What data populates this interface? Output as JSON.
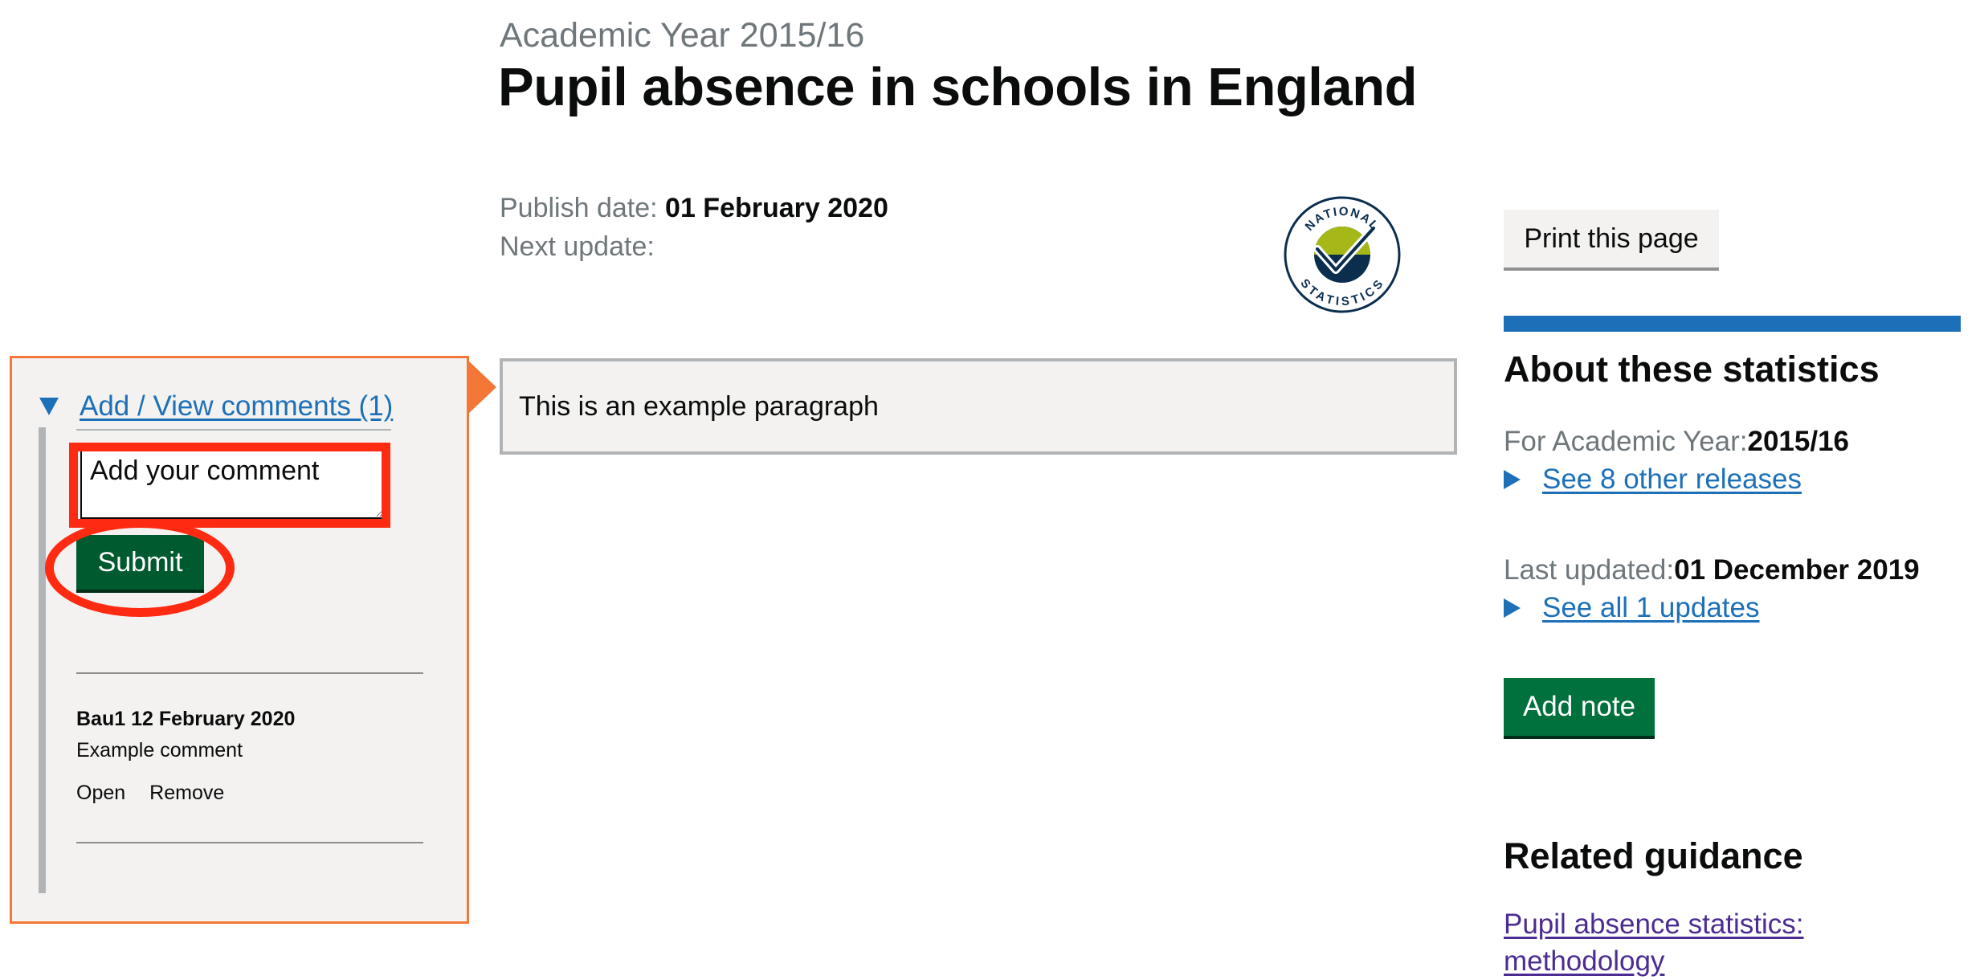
{
  "header": {
    "caption": "Academic Year 2015/16",
    "title": "Pupil absence in schools in England"
  },
  "publication": {
    "publish_label": "Publish date: ",
    "publish_date": "01 February 2020",
    "next_update_label": "Next update:",
    "logo_icon": "national-statistics-logo",
    "logo_text_top": "NATIONAL",
    "logo_text_bottom": "STATISTICS"
  },
  "content": {
    "paragraph": "This is an example paragraph"
  },
  "comments": {
    "toggle_label": "Add / View comments (1)",
    "input_placeholder": "Add your comment",
    "submit_label": "Submit",
    "items": [
      {
        "author_line": "Bau1 12 February 2020",
        "text": "Example comment",
        "open_label": "Open",
        "remove_label": "Remove"
      }
    ]
  },
  "sidebar": {
    "print_label": "Print this page",
    "about_title": "About these statistics",
    "academic_year_label": "For Academic Year:",
    "academic_year_value": "2015/16",
    "other_releases_link": "See 8 other releases",
    "last_updated_label": "Last updated:",
    "last_updated_value": "01 December 2019",
    "all_updates_link": "See all 1 updates",
    "add_note_label": "Add note",
    "related_title": "Related guidance",
    "related_link": "Pupil absence statistics: methodology"
  },
  "colors": {
    "link": "#1d70b8",
    "visited_link": "#4c2c92",
    "button_green": "#00703c",
    "highlight_red": "#ff2a12",
    "panel_border_orange": "#f47738",
    "ns_logo_navy": "#0b2e4f",
    "ns_logo_lime": "#a5b818"
  }
}
